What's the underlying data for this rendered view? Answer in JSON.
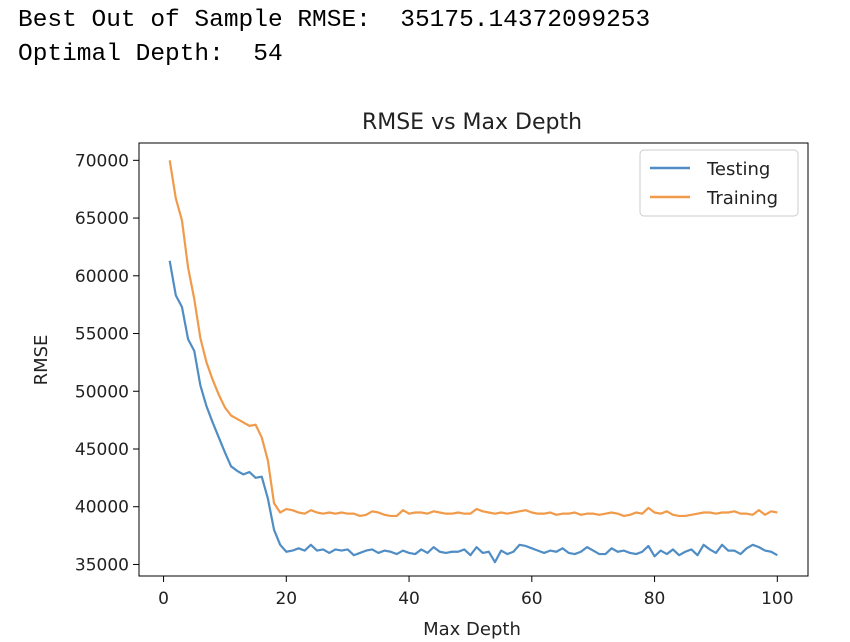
{
  "output": {
    "line1_label": "Best Out of Sample RMSE:",
    "line1_value": "35175.14372099253",
    "line2_label": "Optimal Depth:",
    "line2_value": "54"
  },
  "chart_data": {
    "type": "line",
    "title": "RMSE vs Max Depth",
    "xlabel": "Max Depth",
    "ylabel": "RMSE",
    "xlim": [
      -4,
      105
    ],
    "ylim": [
      34000,
      71500
    ],
    "xticks": [
      0,
      20,
      40,
      60,
      80,
      100
    ],
    "yticks": [
      35000,
      40000,
      45000,
      50000,
      55000,
      60000,
      65000,
      70000
    ],
    "grid": false,
    "legend_position": "top-right",
    "series": [
      {
        "name": "Testing",
        "color": "#4f8dc4",
        "x": [
          1,
          2,
          3,
          4,
          5,
          6,
          7,
          8,
          9,
          10,
          11,
          12,
          13,
          14,
          15,
          16,
          17,
          18,
          19,
          20,
          21,
          22,
          23,
          24,
          25,
          26,
          27,
          28,
          29,
          30,
          31,
          32,
          33,
          34,
          35,
          36,
          37,
          38,
          39,
          40,
          41,
          42,
          43,
          44,
          45,
          46,
          47,
          48,
          49,
          50,
          51,
          52,
          53,
          54,
          55,
          56,
          57,
          58,
          59,
          60,
          61,
          62,
          63,
          64,
          65,
          66,
          67,
          68,
          69,
          70,
          71,
          72,
          73,
          74,
          75,
          76,
          77,
          78,
          79,
          80,
          81,
          82,
          83,
          84,
          85,
          86,
          87,
          88,
          89,
          90,
          91,
          92,
          93,
          94,
          95,
          96,
          97,
          98,
          99,
          100
        ],
        "values": [
          61300,
          58300,
          57300,
          54500,
          53500,
          50500,
          48700,
          47300,
          46000,
          44700,
          43500,
          43100,
          42800,
          43000,
          42500,
          42600,
          40700,
          38000,
          36700,
          36100,
          36200,
          36400,
          36200,
          36700,
          36200,
          36300,
          36000,
          36300,
          36200,
          36300,
          35800,
          36000,
          36200,
          36300,
          36000,
          36200,
          36100,
          35900,
          36200,
          36000,
          35900,
          36300,
          36000,
          36500,
          36100,
          36000,
          36100,
          36100,
          36300,
          35800,
          36500,
          36000,
          36100,
          35200,
          36200,
          35900,
          36100,
          36700,
          36600,
          36400,
          36200,
          36000,
          36200,
          36100,
          36400,
          36000,
          35900,
          36100,
          36500,
          36200,
          35900,
          35900,
          36400,
          36100,
          36200,
          36000,
          35900,
          36100,
          36600,
          35700,
          36200,
          35900,
          36300,
          35800,
          36100,
          36300,
          35800,
          36700,
          36300,
          36000,
          36700,
          36200,
          36200,
          35900,
          36400,
          36700,
          36500,
          36200,
          36100,
          35800
        ]
      },
      {
        "name": "Training",
        "color": "#f09a4a",
        "x": [
          1,
          2,
          3,
          4,
          5,
          6,
          7,
          8,
          9,
          10,
          11,
          12,
          13,
          14,
          15,
          16,
          17,
          18,
          19,
          20,
          21,
          22,
          23,
          24,
          25,
          26,
          27,
          28,
          29,
          30,
          31,
          32,
          33,
          34,
          35,
          36,
          37,
          38,
          39,
          40,
          41,
          42,
          43,
          44,
          45,
          46,
          47,
          48,
          49,
          50,
          51,
          52,
          53,
          54,
          55,
          56,
          57,
          58,
          59,
          60,
          61,
          62,
          63,
          64,
          65,
          66,
          67,
          68,
          69,
          70,
          71,
          72,
          73,
          74,
          75,
          76,
          77,
          78,
          79,
          80,
          81,
          82,
          83,
          84,
          85,
          86,
          87,
          88,
          89,
          90,
          91,
          92,
          93,
          94,
          95,
          96,
          97,
          98,
          99,
          100
        ],
        "values": [
          70000,
          66700,
          64800,
          60700,
          58000,
          54600,
          52500,
          51000,
          49700,
          48600,
          47900,
          47600,
          47300,
          47000,
          47100,
          46000,
          44000,
          40300,
          39500,
          39800,
          39700,
          39500,
          39400,
          39700,
          39500,
          39400,
          39500,
          39400,
          39500,
          39400,
          39400,
          39200,
          39300,
          39600,
          39500,
          39300,
          39200,
          39200,
          39700,
          39400,
          39500,
          39500,
          39400,
          39600,
          39500,
          39400,
          39400,
          39500,
          39400,
          39400,
          39800,
          39600,
          39500,
          39400,
          39500,
          39400,
          39500,
          39600,
          39700,
          39500,
          39400,
          39400,
          39500,
          39300,
          39400,
          39400,
          39500,
          39300,
          39400,
          39400,
          39300,
          39400,
          39500,
          39400,
          39200,
          39300,
          39500,
          39400,
          39900,
          39500,
          39400,
          39600,
          39300,
          39200,
          39200,
          39300,
          39400,
          39500,
          39500,
          39400,
          39500,
          39500,
          39600,
          39400,
          39400,
          39300,
          39700,
          39300,
          39600,
          39500
        ]
      }
    ]
  }
}
